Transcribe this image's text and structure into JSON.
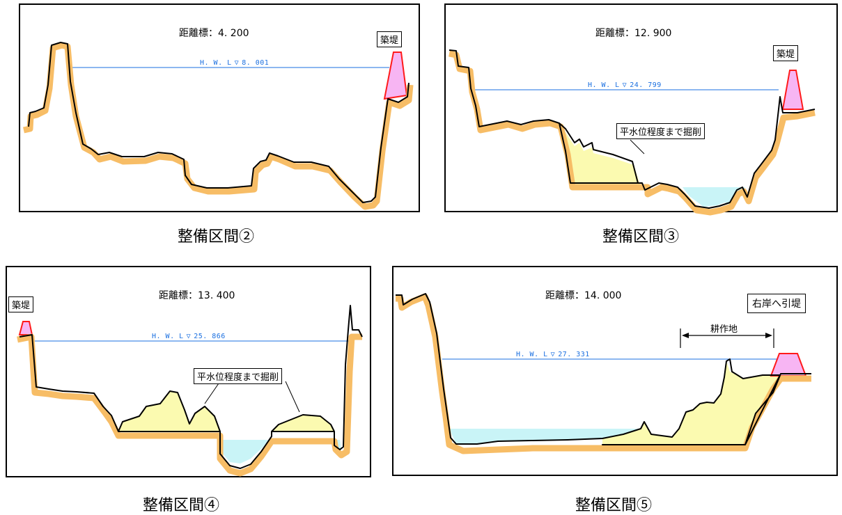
{
  "colors": {
    "bank_outline": "#f7bd66",
    "ground_line": "#000000",
    "levee_fill": "#f7b5f3",
    "levee_outline": "#ff1a1a",
    "hwl_line": "#1a6fe0",
    "excavation_fill": "#fbfab0",
    "water_fill": "#c9f4f7"
  },
  "panels": [
    {
      "id": "section2",
      "caption": "整備区間②",
      "distance": "距離標：4. 200",
      "hwl_label": "H. W. L",
      "hwl_value": "8. 001",
      "levee_label": "築堤"
    },
    {
      "id": "section3",
      "caption": "整備区間③",
      "distance": "距離標：12. 900",
      "hwl_label": "H. W. L",
      "hwl_value": "24. 799",
      "levee_label": "築堤",
      "excavation_label": "平水位程度まで掘削"
    },
    {
      "id": "section4",
      "caption": "整備区間④",
      "distance": "距離標：13. 400",
      "hwl_label": "H. W. L",
      "hwl_value": "25. 866",
      "levee_label": "築堤",
      "excavation_label": "平水位程度まで掘削"
    },
    {
      "id": "section5",
      "caption": "整備区間⑤",
      "distance": "距離標：14. 000",
      "hwl_label": "H. W. L",
      "hwl_value": "27. 331",
      "retreat_label": "右岸へ引堤",
      "farmland_label": "耕作地"
    }
  ]
}
